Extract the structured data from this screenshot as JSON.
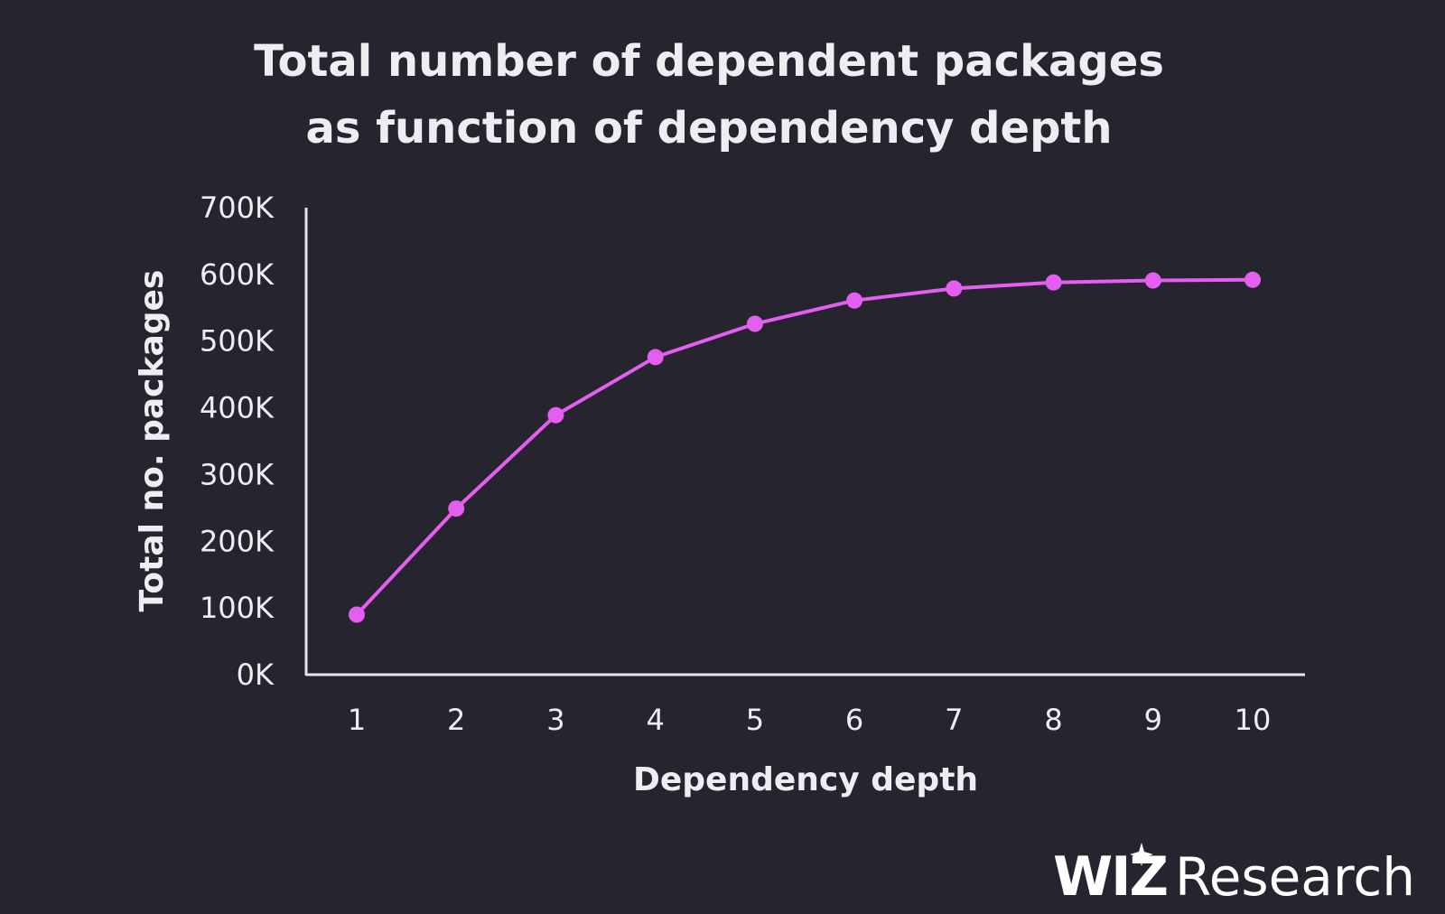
{
  "chart_data": {
    "type": "line",
    "title_lines": [
      "Total number of dependent packages",
      "as function of dependency depth"
    ],
    "xlabel": "Dependency depth",
    "ylabel": "Total no. packages",
    "x": [
      1,
      2,
      3,
      4,
      5,
      6,
      7,
      8,
      9,
      10
    ],
    "y_ticks": [
      "0K",
      "100K",
      "200K",
      "300K",
      "400K",
      "500K",
      "600K",
      "700K"
    ],
    "ylim": [
      0,
      700000
    ],
    "series": [
      {
        "color": "#e45ef0",
        "values": [
          90000,
          249000,
          389000,
          476000,
          526000,
          561000,
          579000,
          588000,
          591000,
          592000
        ]
      }
    ],
    "grid": false,
    "legend": "none"
  },
  "branding": {
    "logo": "WIZ",
    "text": "Research",
    "logo_icon": "sparkle-icon"
  },
  "colors": {
    "background": "#26242e",
    "text": "#eeeef2",
    "accent": "#e45ef0"
  }
}
